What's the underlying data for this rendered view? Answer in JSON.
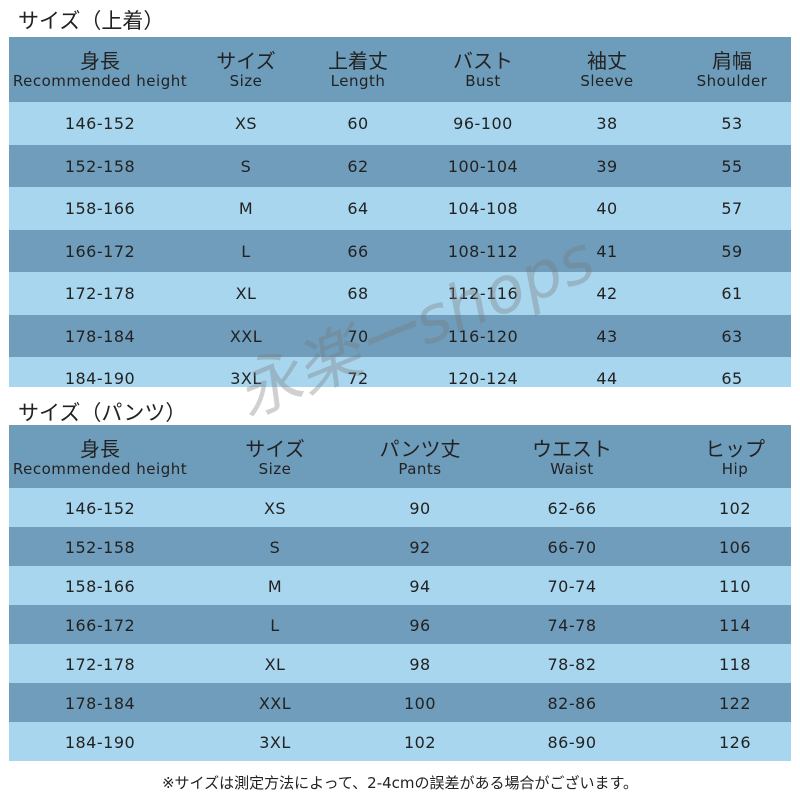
{
  "tops": {
    "title": "サイズ（上着）",
    "headers": [
      {
        "ja": "身長",
        "en": "Recommended height"
      },
      {
        "ja": "サイズ",
        "en": "Size"
      },
      {
        "ja": "上着丈",
        "en": "Length"
      },
      {
        "ja": "バスト",
        "en": "Bust"
      },
      {
        "ja": "袖丈",
        "en": "Sleeve"
      },
      {
        "ja": "肩幅",
        "en": "Shoulder"
      }
    ],
    "rows": [
      [
        "146-152",
        "XS",
        60,
        "96-100",
        38,
        53
      ],
      [
        "152-158",
        "S",
        62,
        "100-104",
        39,
        55
      ],
      [
        "158-166",
        "M",
        64,
        "104-108",
        40,
        57
      ],
      [
        "166-172",
        "L",
        66,
        "108-112",
        41,
        59
      ],
      [
        "172-178",
        "XL",
        68,
        "112-116",
        42,
        61
      ],
      [
        "178-184",
        "XXL",
        70,
        "116-120",
        43,
        63
      ],
      [
        "184-190",
        "3XL",
        72,
        "120-124",
        44,
        65
      ]
    ]
  },
  "pants": {
    "title": "サイズ（パンツ）",
    "headers": [
      {
        "ja": "身長",
        "en": "Recommended height"
      },
      {
        "ja": "サイズ",
        "en": "Size"
      },
      {
        "ja": "パンツ丈",
        "en": "Pants"
      },
      {
        "ja": "ウエスト",
        "en": "Waist"
      },
      {
        "ja": "ヒップ",
        "en": "Hip"
      }
    ],
    "rows": [
      [
        "146-152",
        "XS",
        90,
        "62-66",
        102
      ],
      [
        "152-158",
        "S",
        92,
        "66-70",
        106
      ],
      [
        "158-166",
        "M",
        94,
        "70-74",
        110
      ],
      [
        "166-172",
        "L",
        96,
        "74-78",
        114
      ],
      [
        "172-178",
        "XL",
        98,
        "78-82",
        118
      ],
      [
        "178-184",
        "XXL",
        100,
        "82-86",
        122
      ],
      [
        "184-190",
        "3XL",
        102,
        "86-90",
        126
      ]
    ]
  },
  "watermark": "永楽ーshops",
  "footnote": "※サイズは測定方法によって、2-4cmの誤差がある場合がございます。"
}
